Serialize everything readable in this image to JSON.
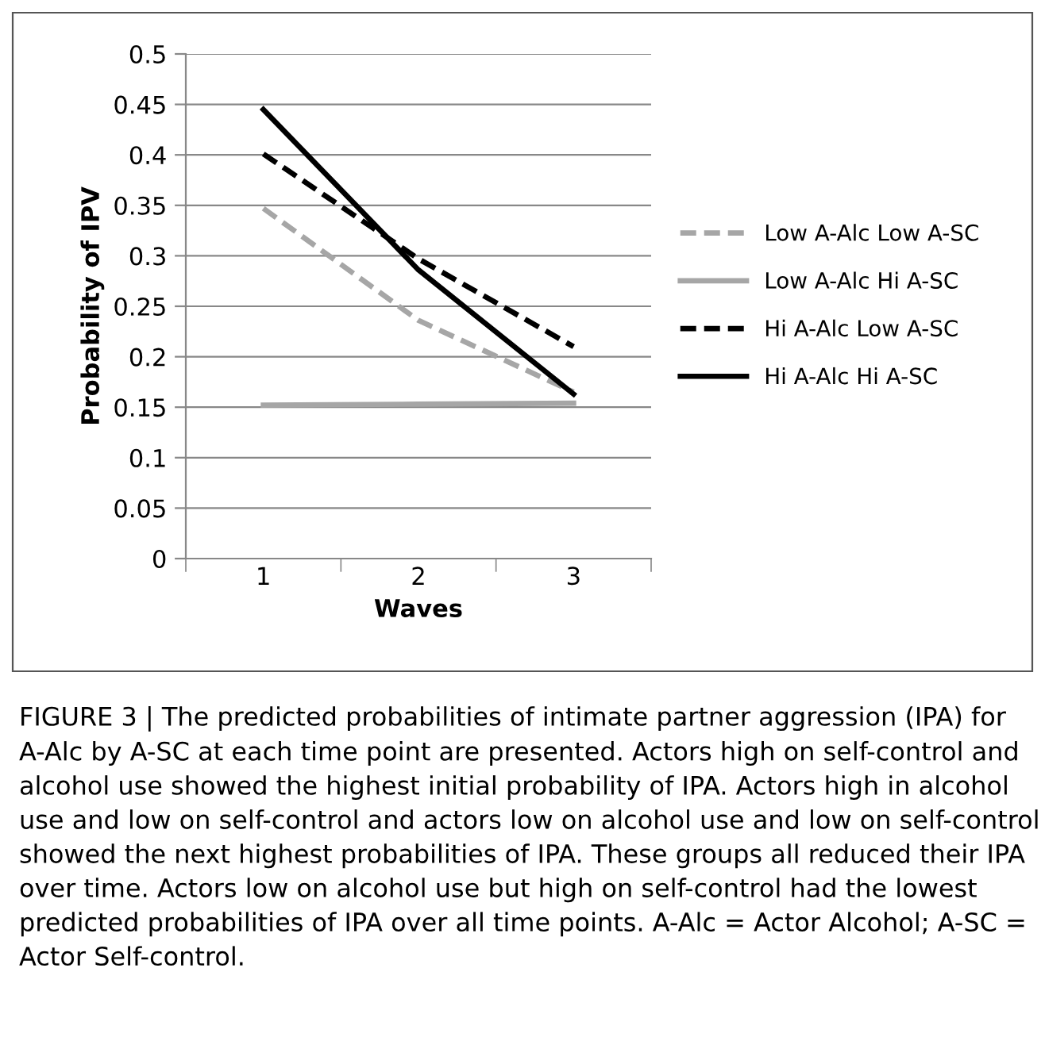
{
  "chart_data": {
    "type": "line",
    "xlabel": "Waves",
    "ylabel": "Probability of IPV",
    "categories": [
      "1",
      "2",
      "3"
    ],
    "series": [
      {
        "name": "Low A-Alc Low A-SC",
        "color": "#a6a6a6",
        "line_style": "dashed",
        "values": [
          0.347,
          0.236,
          0.165
        ]
      },
      {
        "name": "Low A-Alc Hi A-SC",
        "color": "#a6a6a6",
        "line_style": "solid",
        "values": [
          0.152,
          0.153,
          0.154
        ]
      },
      {
        "name": "Hi A-Alc Low A-SC",
        "color": "#000000",
        "line_style": "dashed",
        "values": [
          0.401,
          0.297,
          0.21
        ]
      },
      {
        "name": "Hi A-Alc Hi A-SC",
        "color": "#000000",
        "line_style": "solid",
        "values": [
          0.445,
          0.286,
          0.163
        ]
      }
    ],
    "ylim": [
      0,
      0.5
    ],
    "yticks": [
      0,
      0.05,
      0.1,
      0.15,
      0.2,
      0.25,
      0.3,
      0.35,
      0.4,
      0.45,
      0.5
    ],
    "grid": "y",
    "legend": "right",
    "annotations": [
      "FIGURE 3 | The predicted probabilities of intimate partner aggression (IPA) for A-Alc by A-SC at each time point are presented. Actors high on self-control and alcohol use showed the highest initial probability of IPA. Actors high in alcohol use and low on self-control and actors low on alcohol use and low on self-control showed the next highest probabilities of IPA. These groups all reduced their IPA over time. Actors low on alcohol use but high on self-control had the lowest predicted probabilities of IPA over all time points. A-Alc = Actor Alcohol; A-SC = Actor Self-control."
    ]
  }
}
